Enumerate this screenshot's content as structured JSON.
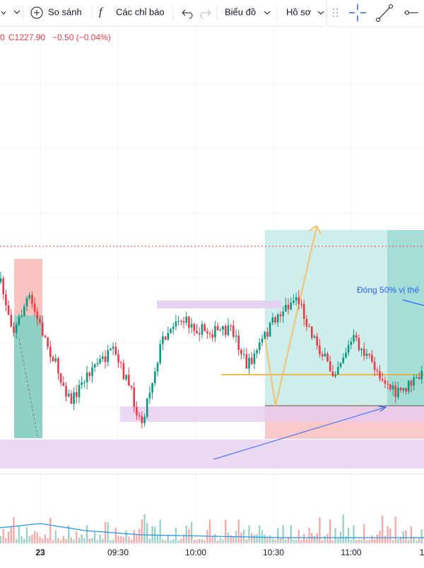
{
  "toolbar": {
    "compare": "So sánh",
    "indicators": "Các chỉ báo",
    "chart_menu": "Biểu đồ",
    "profile_menu": "Hồ sơ"
  },
  "legend": {
    "prefix": "0",
    "close": "C1227.90",
    "change": "−0.50 (−0.04%)"
  },
  "annotation": "Đóng 50% vị thế",
  "time_axis": [
    "23",
    "09:30",
    "10:00",
    "10:30",
    "11:00",
    "1"
  ]
}
